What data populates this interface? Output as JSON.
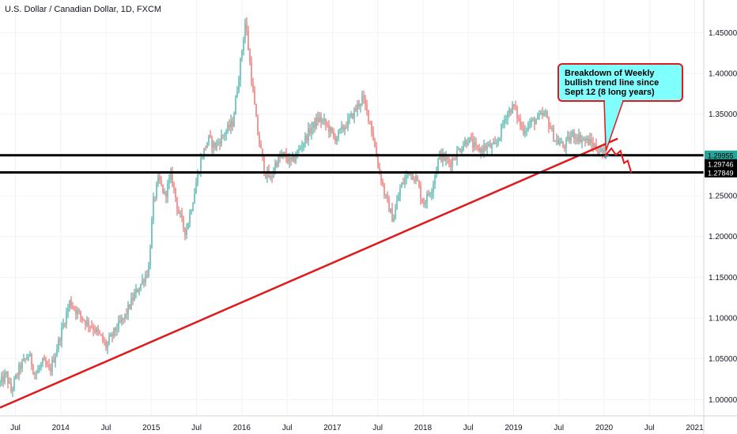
{
  "chart_data": {
    "type": "candlestick",
    "title": "U.S. Dollar / Canadian Dollar, 1D, FXCM",
    "xlabel": "",
    "ylabel": "",
    "ylim": [
      0.98,
      1.49
    ],
    "xlim": [
      2013.33,
      2021.1
    ],
    "y_ticks": [
      {
        "value": 1.0,
        "label": "1.00000"
      },
      {
        "value": 1.05,
        "label": "1.05000"
      },
      {
        "value": 1.1,
        "label": "1.10000"
      },
      {
        "value": 1.15,
        "label": "1.15000"
      },
      {
        "value": 1.2,
        "label": "1.20000"
      },
      {
        "value": 1.25,
        "label": "1.25000"
      },
      {
        "value": 1.3,
        "label": "1.30000"
      },
      {
        "value": 1.35,
        "label": "1.35000"
      },
      {
        "value": 1.4,
        "label": "1.40000"
      },
      {
        "value": 1.45,
        "label": "1.45000"
      }
    ],
    "x_ticks": [
      {
        "value": 2013.5,
        "label": "Jul"
      },
      {
        "value": 2014.0,
        "label": "2014"
      },
      {
        "value": 2014.5,
        "label": "Jul"
      },
      {
        "value": 2015.0,
        "label": "2015"
      },
      {
        "value": 2015.5,
        "label": "Jul"
      },
      {
        "value": 2016.0,
        "label": "2016"
      },
      {
        "value": 2016.5,
        "label": "Jul"
      },
      {
        "value": 2017.0,
        "label": "2017"
      },
      {
        "value": 2017.5,
        "label": "Jul"
      },
      {
        "value": 2018.0,
        "label": "2018"
      },
      {
        "value": 2018.5,
        "label": "Jul"
      },
      {
        "value": 2019.0,
        "label": "2019"
      },
      {
        "value": 2019.5,
        "label": "Jul"
      },
      {
        "value": 2020.0,
        "label": "2020"
      },
      {
        "value": 2020.5,
        "label": "Jul"
      },
      {
        "value": 2021.0,
        "label": "2021"
      }
    ],
    "price_path": [
      [
        2013.33,
        1.02
      ],
      [
        2013.4,
        1.03
      ],
      [
        2013.45,
        1.01
      ],
      [
        2013.55,
        1.04
      ],
      [
        2013.65,
        1.055
      ],
      [
        2013.72,
        1.03
      ],
      [
        2013.8,
        1.045
      ],
      [
        2013.88,
        1.035
      ],
      [
        2013.95,
        1.06
      ],
      [
        2014.05,
        1.1
      ],
      [
        2014.1,
        1.12
      ],
      [
        2014.2,
        1.105
      ],
      [
        2014.28,
        1.095
      ],
      [
        2014.35,
        1.09
      ],
      [
        2014.45,
        1.075
      ],
      [
        2014.5,
        1.065
      ],
      [
        2014.6,
        1.085
      ],
      [
        2014.7,
        1.1
      ],
      [
        2014.8,
        1.125
      ],
      [
        2014.9,
        1.145
      ],
      [
        2014.97,
        1.16
      ],
      [
        2015.02,
        1.24
      ],
      [
        2015.08,
        1.27
      ],
      [
        2015.15,
        1.25
      ],
      [
        2015.22,
        1.275
      ],
      [
        2015.3,
        1.23
      ],
      [
        2015.38,
        1.205
      ],
      [
        2015.45,
        1.24
      ],
      [
        2015.55,
        1.295
      ],
      [
        2015.63,
        1.32
      ],
      [
        2015.7,
        1.31
      ],
      [
        2015.8,
        1.325
      ],
      [
        2015.9,
        1.34
      ],
      [
        2015.97,
        1.4
      ],
      [
        2016.04,
        1.465
      ],
      [
        2016.1,
        1.4
      ],
      [
        2016.17,
        1.33
      ],
      [
        2016.25,
        1.28
      ],
      [
        2016.32,
        1.27
      ],
      [
        2016.37,
        1.29
      ],
      [
        2016.45,
        1.3
      ],
      [
        2016.55,
        1.29
      ],
      [
        2016.65,
        1.31
      ],
      [
        2016.75,
        1.33
      ],
      [
        2016.85,
        1.345
      ],
      [
        2016.95,
        1.335
      ],
      [
        2017.02,
        1.32
      ],
      [
        2017.1,
        1.33
      ],
      [
        2017.2,
        1.345
      ],
      [
        2017.33,
        1.37
      ],
      [
        2017.42,
        1.34
      ],
      [
        2017.5,
        1.29
      ],
      [
        2017.58,
        1.25
      ],
      [
        2017.67,
        1.22
      ],
      [
        2017.75,
        1.26
      ],
      [
        2017.85,
        1.28
      ],
      [
        2017.93,
        1.27
      ],
      [
        2018.0,
        1.24
      ],
      [
        2018.1,
        1.26
      ],
      [
        2018.18,
        1.3
      ],
      [
        2018.3,
        1.29
      ],
      [
        2018.42,
        1.31
      ],
      [
        2018.5,
        1.32
      ],
      [
        2018.6,
        1.305
      ],
      [
        2018.7,
        1.31
      ],
      [
        2018.8,
        1.31
      ],
      [
        2018.92,
        1.35
      ],
      [
        2019.0,
        1.36
      ],
      [
        2019.1,
        1.33
      ],
      [
        2019.2,
        1.34
      ],
      [
        2019.35,
        1.35
      ],
      [
        2019.45,
        1.32
      ],
      [
        2019.55,
        1.31
      ],
      [
        2019.65,
        1.325
      ],
      [
        2019.75,
        1.32
      ],
      [
        2019.85,
        1.315
      ],
      [
        2019.95,
        1.305
      ],
      [
        2020.02,
        1.3
      ]
    ],
    "series": [
      {
        "type": "trendline",
        "color": "#e0191b",
        "points": [
          [
            2013.33,
            0.99
          ],
          [
            2020.15,
            1.32
          ]
        ]
      },
      {
        "type": "horizontal-line",
        "color": "#000000",
        "value": 1.29955
      },
      {
        "type": "horizontal-line",
        "color": "#000000",
        "value": 1.27849
      },
      {
        "type": "projection",
        "color": "#e0191b",
        "points": [
          [
            2020.0,
            1.2975
          ],
          [
            2020.08,
            1.308
          ],
          [
            2020.13,
            1.3
          ],
          [
            2020.18,
            1.305
          ],
          [
            2020.22,
            1.29
          ],
          [
            2020.26,
            1.293
          ],
          [
            2020.3,
            1.278
          ]
        ]
      },
      {
        "type": "projection",
        "color": "#3a9ed0",
        "points": [
          [
            2020.0,
            1.297
          ],
          [
            2020.05,
            1.299
          ]
        ]
      }
    ],
    "price_tags": [
      {
        "label": "1.29955",
        "value": 1.29955,
        "bg": "#26a69a",
        "fg": "#000000"
      },
      {
        "label": "1.29746",
        "value": 1.29746,
        "bg": "#000000",
        "fg": "#ffffff"
      },
      {
        "label": "1.27849",
        "value": 1.27849,
        "bg": "#000000",
        "fg": "#ffffff"
      }
    ],
    "annotations": [
      {
        "text_lines": [
          "Breakdown of Weekly",
          "bullish trend line since",
          "Sept 12 (8 long years)"
        ],
        "bg": "#80ffff",
        "border": "#e0191b",
        "pointer_to": [
          2020.02,
          1.305
        ]
      }
    ],
    "grid": true,
    "legend": "none",
    "colors": {
      "up": "#26a69a",
      "down": "#ef5350",
      "grid": "#f0f3fa",
      "text": "#131722"
    }
  }
}
